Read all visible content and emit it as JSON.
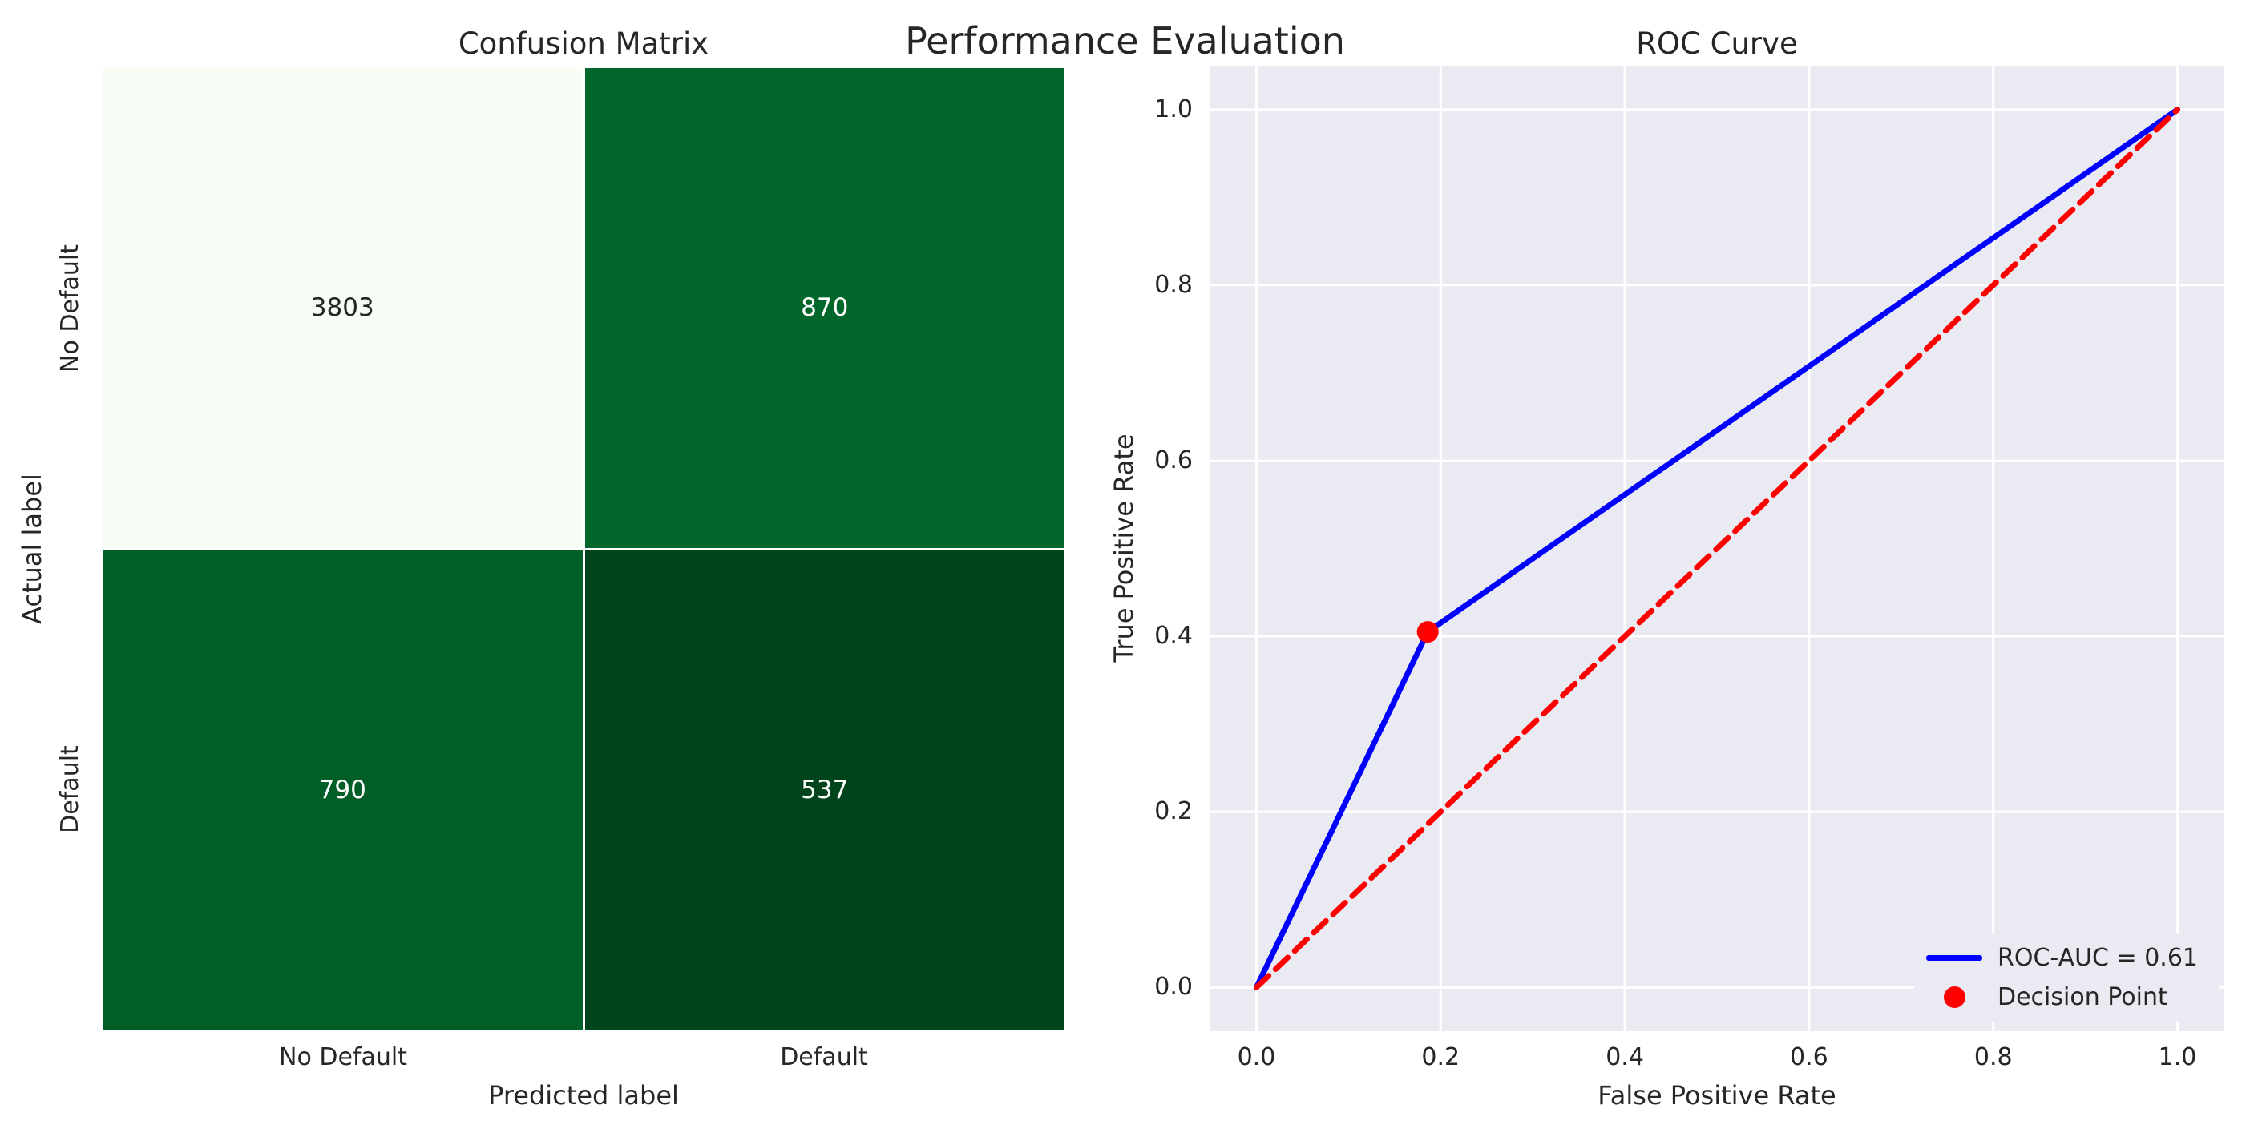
{
  "figure": {
    "suptitle": "Performance Evaluation"
  },
  "confusion_matrix": {
    "title": "Confusion Matrix",
    "xlabel": "Predicted label",
    "ylabel": "Actual label",
    "x_tick_labels": [
      "No Default",
      "Default"
    ],
    "y_tick_labels": [
      "No Default",
      "Default"
    ],
    "rows": [
      [
        3803,
        870
      ],
      [
        790,
        537
      ]
    ],
    "cell_colors": [
      [
        "#f7fcf5",
        "#006629"
      ],
      [
        "#005e26",
        "#00441b"
      ]
    ],
    "cell_text_colors": [
      [
        "#262626",
        "#ffffff"
      ],
      [
        "#ffffff",
        "#ffffff"
      ]
    ]
  },
  "roc": {
    "title": "ROC Curve",
    "xlabel": "False Positive Rate",
    "ylabel": "True Positive Rate",
    "x_tick_labels": [
      "0.0",
      "0.2",
      "0.4",
      "0.6",
      "0.8",
      "1.0"
    ],
    "y_tick_labels": [
      "0.0",
      "0.2",
      "0.4",
      "0.6",
      "0.8",
      "1.0"
    ],
    "background_color": "#eaeaf2",
    "grid_color": "#ffffff",
    "legend": [
      {
        "label": "ROC-AUC = 0.61",
        "marker": "line",
        "color": "#0000ff"
      },
      {
        "label": "Decision Point",
        "marker": "dot",
        "color": "#ff0000"
      }
    ]
  },
  "chart_data": [
    {
      "type": "heatmap",
      "title": "Confusion Matrix",
      "xlabel": "Predicted label",
      "ylabel": "Actual label",
      "x_categories": [
        "No Default",
        "Default"
      ],
      "y_categories": [
        "No Default",
        "Default"
      ],
      "values": [
        [
          3803,
          870
        ],
        [
          790,
          537
        ]
      ],
      "colormap": "Greens_r",
      "annotations": true
    },
    {
      "type": "line",
      "title": "ROC Curve",
      "xlabel": "False Positive Rate",
      "ylabel": "True Positive Rate",
      "xlim": [
        -0.05,
        1.05
      ],
      "ylim": [
        -0.05,
        1.05
      ],
      "x_ticks": [
        0.0,
        0.2,
        0.4,
        0.6,
        0.8,
        1.0
      ],
      "y_ticks": [
        0.0,
        0.2,
        0.4,
        0.6,
        0.8,
        1.0
      ],
      "grid": true,
      "legend_position": "lower right",
      "series": [
        {
          "name": "ROC-AUC = 0.61",
          "type": "line",
          "style": "solid",
          "color": "#0000ff",
          "x": [
            0.0,
            0.186,
            1.0
          ],
          "y": [
            0.0,
            0.405,
            1.0
          ]
        },
        {
          "name": "",
          "type": "line",
          "style": "dashed",
          "color": "#ff0000",
          "x": [
            0.0,
            1.0
          ],
          "y": [
            0.0,
            1.0
          ]
        },
        {
          "name": "Decision Point",
          "type": "scatter",
          "color": "#ff0000",
          "x": [
            0.186
          ],
          "y": [
            0.405
          ]
        }
      ]
    }
  ]
}
